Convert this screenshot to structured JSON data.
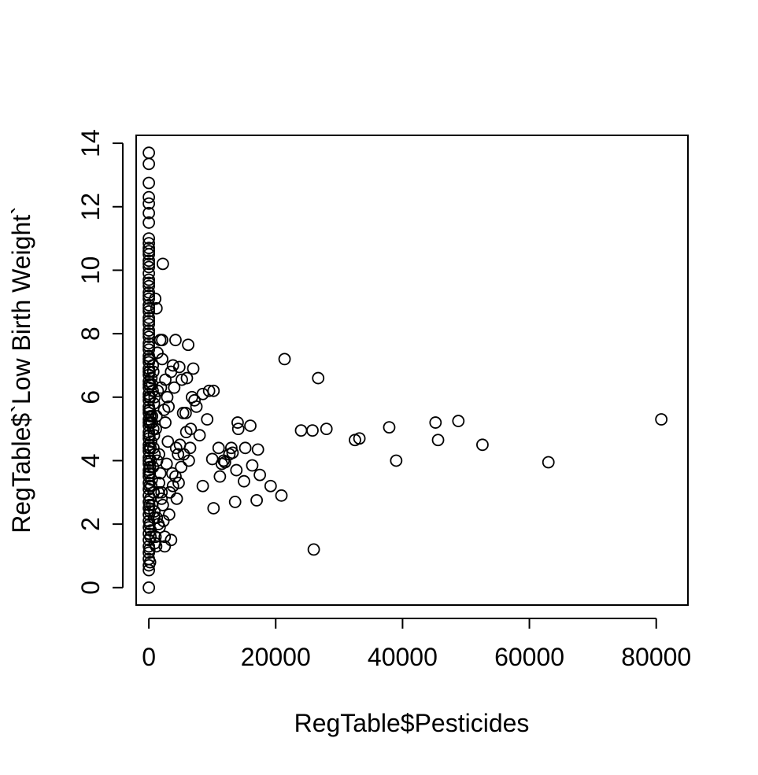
{
  "chart_data": {
    "type": "scatter",
    "title": "",
    "xlabel": "RegTable$Pesticides",
    "ylabel": "RegTable$`Low Birth Weight`",
    "xlim": [
      -2000,
      85000
    ],
    "ylim": [
      -0.55,
      14.25
    ],
    "x_ticks": [
      0,
      20000,
      40000,
      60000,
      80000
    ],
    "x_tick_labels": [
      "0",
      "20000",
      "40000",
      "60000",
      "80000"
    ],
    "y_ticks": [
      0,
      2,
      4,
      6,
      8,
      10,
      12,
      14
    ],
    "y_tick_labels": [
      "0",
      "2",
      "4",
      "6",
      "8",
      "10",
      "12",
      "14"
    ],
    "grid": false,
    "marker": "open-circle",
    "marker_color": "#000000",
    "x": [
      0,
      0,
      0,
      0,
      0,
      0,
      0,
      0,
      0,
      0,
      0,
      0,
      0,
      0,
      0,
      0,
      0,
      0,
      0,
      0,
      0,
      0,
      0,
      0,
      0,
      0,
      0,
      0,
      0,
      0,
      0,
      0,
      0,
      0,
      0,
      0,
      0,
      0,
      0,
      0,
      0,
      0,
      0,
      0,
      0,
      0,
      0,
      0,
      0,
      0,
      0,
      0,
      0,
      0,
      0,
      0,
      0,
      0,
      0,
      0,
      0,
      0,
      0,
      0,
      0,
      0,
      0,
      0,
      0,
      0,
      0,
      0,
      0,
      0,
      0,
      0,
      0,
      0,
      0,
      0,
      100,
      150,
      200,
      120,
      180,
      90,
      250,
      300,
      140,
      60,
      220,
      170,
      110,
      260,
      80,
      190,
      130,
      240,
      160,
      70,
      400,
      600,
      800,
      500,
      700,
      350,
      900,
      650,
      450,
      750,
      550,
      850,
      300,
      950,
      620,
      480,
      720,
      380,
      880,
      520,
      1000,
      1200,
      1400,
      1100,
      1300,
      1500,
      1250,
      1050,
      1350,
      1150,
      2200,
      1800,
      2100,
      1900,
      2400,
      2600,
      3000,
      2800,
      1600,
      2000,
      3200,
      3500,
      2500,
      1700,
      2300,
      700,
      900,
      1200,
      800,
      1600,
      1800,
      2000,
      2200,
      1500,
      2500,
      2100,
      4200,
      6200,
      3800,
      2600,
      4800,
      7000,
      6000,
      3500,
      5200,
      2900,
      4000,
      3100,
      5400,
      8500,
      9500,
      10200,
      7200,
      6800,
      5800,
      7500,
      9200,
      4300,
      4600,
      6600,
      8000,
      5900,
      3700,
      4200,
      5100,
      3800,
      4700,
      6300,
      5500,
      4900,
      6500,
      3300,
      4400,
      11000,
      12700,
      13000,
      14000,
      14100,
      16000,
      10000,
      11200,
      15000,
      16300,
      17500,
      12000,
      13800,
      11800,
      13200,
      15200,
      17200,
      19200,
      20900,
      13600,
      10200,
      17000,
      8500,
      11500,
      21400,
      26700,
      24000,
      25800,
      28000,
      32500,
      33200,
      37900,
      39000,
      45200,
      45600,
      48800,
      52600,
      63000,
      80800,
      26000
    ],
    "y": [
      13.7,
      13.35,
      12.75,
      12.3,
      12.1,
      11.8,
      11.5,
      11.0,
      10.85,
      10.7,
      10.5,
      10.3,
      10.1,
      9.9,
      9.7,
      9.5,
      9.3,
      9.1,
      8.9,
      8.7,
      8.5,
      8.3,
      8.1,
      7.9,
      7.7,
      7.5,
      7.3,
      7.1,
      6.9,
      6.7,
      6.5,
      6.3,
      6.1,
      5.9,
      5.7,
      5.5,
      5.3,
      5.1,
      4.9,
      4.7,
      4.5,
      4.3,
      4.1,
      3.9,
      3.7,
      3.5,
      3.3,
      3.1,
      2.9,
      2.7,
      2.5,
      2.3,
      2.1,
      1.9,
      1.7,
      1.5,
      1.3,
      1.1,
      0.9,
      0.7,
      0.55,
      0.0,
      10.6,
      10.2,
      9.6,
      9.2,
      8.8,
      8.4,
      8.0,
      7.6,
      7.2,
      6.8,
      6.4,
      6.0,
      5.6,
      5.2,
      4.8,
      4.4,
      4.0,
      3.6,
      6.8,
      6.4,
      6.0,
      5.6,
      5.2,
      4.8,
      4.4,
      4.0,
      3.6,
      3.2,
      2.8,
      2.4,
      2.0,
      1.6,
      1.2,
      0.8,
      7.2,
      5.4,
      3.8,
      2.6,
      6.6,
      6.2,
      5.8,
      5.4,
      5.0,
      4.6,
      4.2,
      3.8,
      3.4,
      3.0,
      2.6,
      2.2,
      1.8,
      1.4,
      7.0,
      5.2,
      4.4,
      3.2,
      2.4,
      6.4,
      9.1,
      8.8,
      6.2,
      5.0,
      4.0,
      3.0,
      2.2,
      1.6,
      7.4,
      1.3,
      10.2,
      7.8,
      7.2,
      6.3,
      5.6,
      5.2,
      4.6,
      3.9,
      3.3,
      2.8,
      2.3,
      1.5,
      1.3,
      1.9,
      2.1,
      6.8,
      6.0,
      5.4,
      4.8,
      4.2,
      3.6,
      3.0,
      2.6,
      2.0,
      1.6,
      7.8,
      7.8,
      7.65,
      7.0,
      6.55,
      6.95,
      6.9,
      6.6,
      6.8,
      6.55,
      6.0,
      6.3,
      5.7,
      5.5,
      6.1,
      6.2,
      6.2,
      5.9,
      6.0,
      5.5,
      5.7,
      5.3,
      4.4,
      4.2,
      5.0,
      4.8,
      4.9,
      3.6,
      3.5,
      3.8,
      3.2,
      3.3,
      4.0,
      4.2,
      4.5,
      4.4,
      3.0,
      2.8,
      4.4,
      4.2,
      4.4,
      5.2,
      5.0,
      5.1,
      4.05,
      3.5,
      3.35,
      3.85,
      3.55,
      3.95,
      3.7,
      4.0,
      4.25,
      4.4,
      4.35,
      3.2,
      2.9,
      2.7,
      2.5,
      2.75,
      3.2,
      3.9,
      7.2,
      6.6,
      4.95,
      4.95,
      5.0,
      4.65,
      4.7,
      5.05,
      4.0,
      5.2,
      4.65,
      5.25,
      4.5,
      3.95,
      5.3,
      1.2
    ]
  }
}
